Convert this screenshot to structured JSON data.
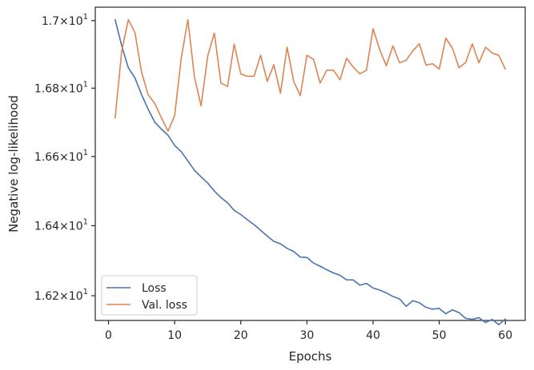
{
  "chart_data": {
    "type": "line",
    "title": "",
    "xlabel": "Epochs",
    "ylabel": "Negative log-likelihood",
    "xlim": [
      -2,
      63
    ],
    "ylim": [
      16.13,
      17.04
    ],
    "y_scale": "log",
    "grid": false,
    "legend_position": "lower-left",
    "x_ticks": [
      0,
      10,
      20,
      30,
      40,
      50,
      60
    ],
    "x_tick_labels": [
      "0",
      "10",
      "20",
      "30",
      "40",
      "50",
      "60"
    ],
    "y_ticks": [
      {
        "value": 16.2,
        "mantissa": "1.62",
        "base": "10",
        "exp": "1"
      },
      {
        "value": 16.4,
        "mantissa": "1.64",
        "base": "10",
        "exp": "1"
      },
      {
        "value": 16.6,
        "mantissa": "1.66",
        "base": "10",
        "exp": "1"
      },
      {
        "value": 16.8,
        "mantissa": "1.68",
        "base": "10",
        "exp": "1"
      },
      {
        "value": 17.0,
        "mantissa": "1.7",
        "base": "10",
        "exp": "1"
      }
    ],
    "x": [
      1,
      2,
      3,
      4,
      5,
      6,
      7,
      8,
      9,
      10,
      11,
      12,
      13,
      14,
      15,
      16,
      17,
      18,
      19,
      20,
      21,
      22,
      23,
      24,
      25,
      26,
      27,
      28,
      29,
      30,
      31,
      32,
      33,
      34,
      35,
      36,
      37,
      38,
      39,
      40,
      41,
      42,
      43,
      44,
      45,
      46,
      47,
      48,
      49,
      50,
      51,
      52,
      53,
      54,
      55,
      56,
      57,
      58,
      59,
      60
    ],
    "series": [
      {
        "name": "Loss",
        "color": "#4c72b0",
        "values": [
          17.003,
          16.925,
          16.86,
          16.83,
          16.781,
          16.738,
          16.7,
          16.68,
          16.662,
          16.632,
          16.614,
          16.587,
          16.56,
          16.541,
          16.523,
          16.5,
          16.481,
          16.466,
          16.444,
          16.432,
          16.417,
          16.403,
          16.387,
          16.37,
          16.355,
          16.348,
          16.335,
          16.326,
          16.31,
          16.309,
          16.293,
          16.284,
          16.274,
          16.265,
          16.258,
          16.245,
          16.245,
          16.23,
          16.235,
          16.222,
          16.216,
          16.208,
          16.198,
          16.191,
          16.17,
          16.186,
          16.18,
          16.167,
          16.162,
          16.164,
          16.149,
          16.16,
          16.152,
          16.136,
          16.133,
          16.138,
          16.124,
          16.133,
          16.118,
          16.134
        ]
      },
      {
        "name": "Val. loss",
        "color": "#dd8452",
        "values": [
          16.712,
          16.91,
          17.003,
          16.964,
          16.847,
          16.78,
          16.755,
          16.713,
          16.674,
          16.719,
          16.889,
          17.003,
          16.832,
          16.748,
          16.895,
          16.963,
          16.815,
          16.805,
          16.93,
          16.842,
          16.835,
          16.835,
          16.897,
          16.82,
          16.869,
          16.785,
          16.921,
          16.82,
          16.778,
          16.897,
          16.885,
          16.815,
          16.853,
          16.853,
          16.825,
          16.888,
          16.862,
          16.842,
          16.853,
          16.976,
          16.914,
          16.866,
          16.925,
          16.875,
          16.882,
          16.91,
          16.931,
          16.868,
          16.872,
          16.856,
          16.948,
          16.918,
          16.86,
          16.876,
          16.931,
          16.875,
          16.921,
          16.904,
          16.897,
          16.856
        ]
      }
    ]
  }
}
